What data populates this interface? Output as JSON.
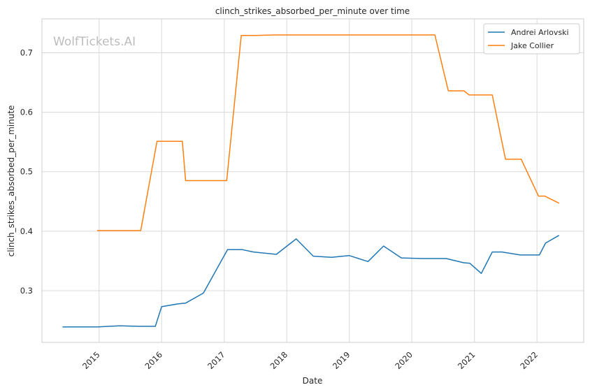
{
  "chart_data": {
    "type": "line",
    "title": "clinch_strikes_absorbed_per_minute over time",
    "xlabel": "Date",
    "ylabel": "clinch_strikes_absorbed_per_minute",
    "watermark": "WolfTickets.AI",
    "x_ticks": [
      "2015",
      "2016",
      "2017",
      "2018",
      "2019",
      "2020",
      "2021",
      "2022"
    ],
    "y_ticks": [
      "0.3",
      "0.4",
      "0.5",
      "0.6",
      "0.7"
    ],
    "xlim": [
      "2014-02-01",
      "2022-10-01"
    ],
    "ylim": [
      0.213,
      0.757
    ],
    "grid": true,
    "legend_position": "top-right",
    "series": [
      {
        "name": "Andrei Arlovski",
        "color": "#1f77b4",
        "points": [
          [
            "2014-06-01",
            0.239
          ],
          [
            "2014-12-20",
            0.239
          ],
          [
            "2015-05-01",
            0.241
          ],
          [
            "2015-08-20",
            0.24
          ],
          [
            "2015-11-25",
            0.24
          ],
          [
            "2016-01-01",
            0.273
          ],
          [
            "2016-04-10",
            0.278
          ],
          [
            "2016-05-20",
            0.279
          ],
          [
            "2016-09-01",
            0.296
          ],
          [
            "2017-01-20",
            0.369
          ],
          [
            "2017-04-15",
            0.369
          ],
          [
            "2017-06-20",
            0.365
          ],
          [
            "2017-11-01",
            0.361
          ],
          [
            "2018-02-25",
            0.387
          ],
          [
            "2018-06-05",
            0.358
          ],
          [
            "2018-09-20",
            0.356
          ],
          [
            "2018-12-31",
            0.359
          ],
          [
            "2019-04-20",
            0.349
          ],
          [
            "2019-07-20",
            0.375
          ],
          [
            "2019-11-01",
            0.355
          ],
          [
            "2020-03-01",
            0.354
          ],
          [
            "2020-07-20",
            0.354
          ],
          [
            "2020-10-30",
            0.347
          ],
          [
            "2020-12-05",
            0.346
          ],
          [
            "2021-02-10",
            0.329
          ],
          [
            "2021-04-15",
            0.365
          ],
          [
            "2021-06-10",
            0.365
          ],
          [
            "2021-09-25",
            0.36
          ],
          [
            "2021-12-31",
            0.36
          ],
          [
            "2022-01-15",
            0.36
          ],
          [
            "2022-02-20",
            0.38
          ],
          [
            "2022-05-10",
            0.393
          ]
        ]
      },
      {
        "name": "Jake Collier",
        "color": "#ff7f0e",
        "points": [
          [
            "2014-12-20",
            0.401
          ],
          [
            "2015-09-01",
            0.401
          ],
          [
            "2015-12-05",
            0.551
          ],
          [
            "2016-05-01",
            0.551
          ],
          [
            "2016-05-20",
            0.485
          ],
          [
            "2017-01-15",
            0.485
          ],
          [
            "2017-04-10",
            0.729
          ],
          [
            "2017-07-01",
            0.729
          ],
          [
            "2017-10-15",
            0.73
          ],
          [
            "2020-05-15",
            0.73
          ],
          [
            "2020-08-01",
            0.636
          ],
          [
            "2020-11-01",
            0.636
          ],
          [
            "2020-12-01",
            0.629
          ],
          [
            "2021-04-15",
            0.629
          ],
          [
            "2021-07-01",
            0.521
          ],
          [
            "2021-10-01",
            0.521
          ],
          [
            "2022-01-10",
            0.459
          ],
          [
            "2022-02-15",
            0.459
          ],
          [
            "2022-05-10",
            0.447
          ]
        ]
      }
    ]
  }
}
